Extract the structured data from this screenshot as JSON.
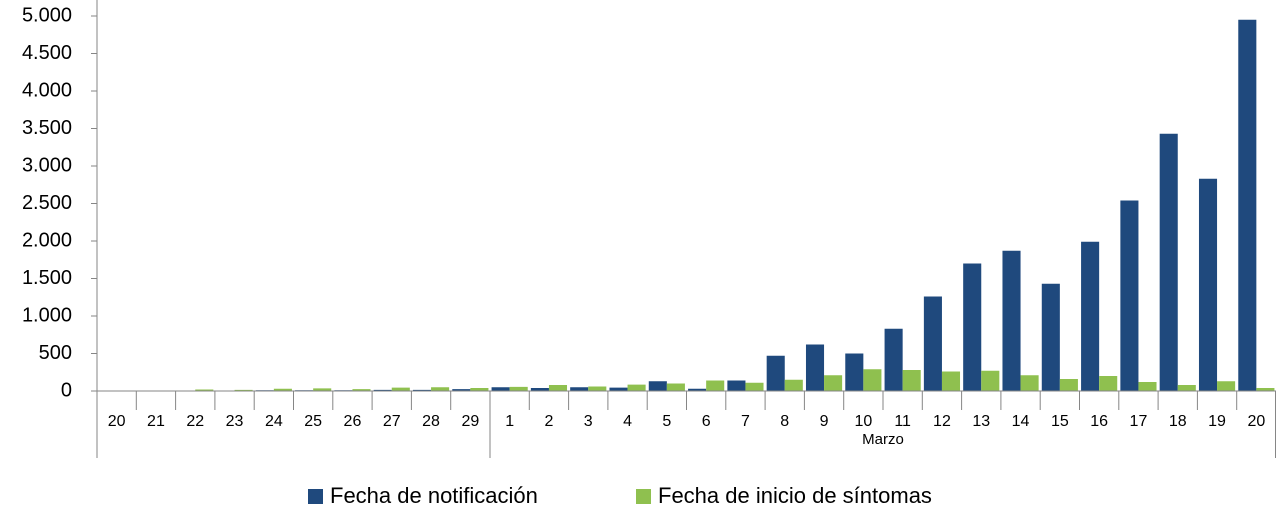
{
  "chart_data": {
    "type": "bar",
    "categories": [
      "20",
      "21",
      "22",
      "23",
      "24",
      "25",
      "26",
      "27",
      "28",
      "29",
      "1",
      "2",
      "3",
      "4",
      "5",
      "6",
      "7",
      "8",
      "9",
      "10",
      "11",
      "12",
      "13",
      "14",
      "15",
      "16",
      "17",
      "18",
      "19",
      "20"
    ],
    "category_groups": [
      null,
      null,
      null,
      null,
      null,
      null,
      null,
      null,
      null,
      null,
      "Marzo",
      "Marzo",
      "Marzo",
      "Marzo",
      "Marzo",
      "Marzo",
      "Marzo",
      "Marzo",
      "Marzo",
      "Marzo",
      "Marzo",
      "Marzo",
      "Marzo",
      "Marzo",
      "Marzo",
      "Marzo",
      "Marzo",
      "Marzo",
      "Marzo",
      "Marzo"
    ],
    "series": [
      {
        "name": "Fecha de notificación",
        "color": "#1f497d",
        "values": [
          5,
          3,
          5,
          5,
          10,
          10,
          10,
          15,
          15,
          25,
          50,
          40,
          50,
          45,
          130,
          30,
          140,
          470,
          620,
          500,
          830,
          1260,
          1700,
          1870,
          1430,
          1990,
          2540,
          3430,
          2830,
          4950
        ]
      },
      {
        "name": "Fecha de inicio de síntomas",
        "color": "#8fc04f",
        "values": [
          3,
          5,
          20,
          15,
          30,
          35,
          25,
          45,
          50,
          40,
          55,
          80,
          60,
          85,
          100,
          140,
          110,
          150,
          210,
          290,
          280,
          260,
          270,
          210,
          160,
          200,
          120,
          80,
          130,
          40
        ]
      }
    ],
    "ylim": [
      0,
      5000
    ],
    "yticks": [
      0,
      500,
      {
        "value": 1000,
        "label": "1.000"
      },
      {
        "value": 1500,
        "label": "1.500"
      },
      {
        "value": 2000,
        "label": "2.000"
      },
      {
        "value": 2500,
        "label": "2.500"
      },
      {
        "value": 3000,
        "label": "3.000"
      },
      {
        "value": 3500,
        "label": "3.500"
      },
      {
        "value": 4000,
        "label": "4.000"
      },
      {
        "value": 4500,
        "label": "4.500"
      },
      {
        "value": 5000,
        "label": "5.000"
      }
    ],
    "legend": "bottom"
  }
}
